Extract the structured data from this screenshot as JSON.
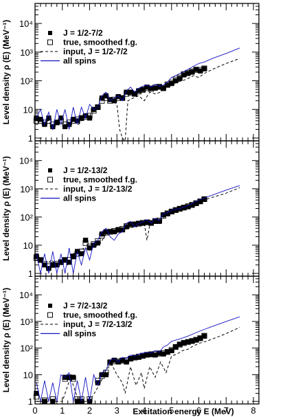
{
  "chart_data": [
    {
      "type": "line",
      "ylabel": "Level density ρ (E) (MeV⁻¹)",
      "xlabel": "",
      "xlim": [
        0,
        8.2
      ],
      "ylim": [
        0.8,
        50000
      ],
      "yscale": "log",
      "yticks": [
        "1",
        "10",
        "10²",
        "10³",
        "10⁴"
      ],
      "xticks": [],
      "legend": {
        "position": "top-left",
        "entries": [
          "J = 1/2-7/2",
          "true, smoothed f.g.",
          "input, J = 1/2-7/2",
          "all spins"
        ]
      },
      "series": [
        {
          "name": "J = 1/2-7/2",
          "style": "filled-square",
          "x": [
            0.05,
            0.2,
            0.35,
            0.5,
            0.65,
            0.8,
            0.95,
            1.1,
            1.25,
            1.4,
            1.55,
            1.7,
            1.85,
            2.0,
            2.15,
            2.3,
            2.45,
            2.6,
            2.75,
            2.9,
            3.05,
            3.2,
            3.35,
            3.5,
            3.65,
            3.8,
            3.95,
            4.1,
            4.25,
            4.4,
            4.55,
            4.7,
            4.85,
            5.0,
            5.15,
            5.3,
            5.45,
            5.6,
            5.75,
            5.9,
            6.05,
            6.2
          ],
          "y": [
            5,
            4.5,
            3,
            5,
            2.5,
            3.5,
            5,
            2.5,
            3,
            4.5,
            4,
            5,
            6,
            5,
            10,
            12,
            25,
            30,
            22,
            20,
            28,
            25,
            40,
            40,
            35,
            45,
            50,
            60,
            55,
            55,
            60,
            55,
            70,
            80,
            100,
            120,
            160,
            180,
            200,
            250,
            220,
            260
          ]
        },
        {
          "name": "true, smoothed f.g.",
          "style": "open-square",
          "x": [
            0.05,
            0.2,
            0.35,
            0.5,
            0.65,
            0.8,
            0.95,
            1.1,
            1.25,
            1.4,
            1.55,
            1.7,
            1.85,
            2.0,
            2.15,
            2.3,
            2.45,
            2.6,
            2.75,
            2.9,
            3.05,
            3.2,
            3.35,
            3.5,
            3.65,
            3.8,
            3.95,
            4.1,
            4.25,
            4.4,
            4.55,
            4.7,
            4.85,
            5.0,
            5.15,
            5.3,
            5.45,
            5.6,
            5.75,
            5.9,
            6.05,
            6.2
          ],
          "y": [
            4,
            4,
            3.5,
            4,
            3,
            3.5,
            4,
            3,
            3.5,
            4,
            4.5,
            5,
            5.5,
            6,
            9,
            12,
            20,
            25,
            20,
            22,
            25,
            25,
            35,
            38,
            35,
            42,
            48,
            55,
            52,
            58,
            62,
            55,
            75,
            85,
            110,
            130,
            170,
            190,
            210,
            240,
            240,
            270
          ]
        },
        {
          "name": "input, J = 1/2-7/2",
          "style": "dashed",
          "x": [
            0.05,
            0.5,
            0.65,
            0.8,
            1.0,
            1.2,
            1.4,
            1.6,
            1.8,
            2.0,
            2.2,
            2.4,
            2.6,
            2.8,
            3.0,
            3.1,
            3.2,
            3.3,
            3.4,
            3.6,
            3.8,
            4.0,
            4.2,
            4.4,
            4.6,
            4.8,
            5.0,
            5.2,
            5.4,
            5.6,
            5.8,
            6.0,
            6.2,
            6.5,
            7.0,
            7.5
          ],
          "y": [
            4,
            4,
            2,
            4,
            3,
            2.5,
            4,
            3,
            5,
            6,
            10,
            18,
            25,
            22,
            15,
            2,
            1,
            0.8,
            20,
            25,
            30,
            20,
            40,
            35,
            40,
            60,
            70,
            90,
            100,
            120,
            150,
            130,
            180,
            250,
            400,
            600
          ]
        },
        {
          "name": "all spins",
          "style": "blue-line",
          "x": [
            0.05,
            0.2,
            0.35,
            0.5,
            0.65,
            0.8,
            0.95,
            1.1,
            1.25,
            1.4,
            1.55,
            1.7,
            1.85,
            2.0,
            2.15,
            2.3,
            2.45,
            2.6,
            2.75,
            2.9,
            3.05,
            3.2,
            3.35,
            3.5,
            3.65,
            3.8,
            3.95,
            4.1,
            4.25,
            4.4,
            4.55,
            4.7,
            4.85,
            5.0,
            5.2,
            5.4,
            5.6,
            5.8,
            6.0,
            6.2,
            6.5,
            7.0,
            7.5
          ],
          "y": [
            5,
            10,
            3,
            8,
            2,
            10,
            3,
            10,
            2,
            12,
            3,
            12,
            5,
            15,
            10,
            12,
            30,
            40,
            20,
            25,
            30,
            20,
            45,
            60,
            40,
            55,
            65,
            70,
            60,
            75,
            65,
            70,
            90,
            130,
            160,
            200,
            250,
            320,
            400,
            450,
            600,
            900,
            1400
          ]
        }
      ]
    },
    {
      "type": "line",
      "ylabel": "Level density ρ (E) (MeV⁻¹)",
      "xlabel": "",
      "xlim": [
        0,
        8.2
      ],
      "ylim": [
        0.8,
        50000
      ],
      "yscale": "log",
      "yticks": [
        "1",
        "10",
        "10²",
        "10³",
        "10⁴"
      ],
      "xticks": [],
      "legend": {
        "position": "top-left",
        "entries": [
          "J = 1/2-13/2",
          "true, smoothed f.g.",
          "input, J = 1/2-13/2",
          "all spins"
        ]
      },
      "series": [
        {
          "name": "J = 1/2-13/2",
          "style": "filled-square",
          "x": [
            0.05,
            0.2,
            0.35,
            0.5,
            0.65,
            0.8,
            0.95,
            1.1,
            1.25,
            1.4,
            1.55,
            1.7,
            1.85,
            2.0,
            2.15,
            2.3,
            2.45,
            2.6,
            2.75,
            2.9,
            3.05,
            3.2,
            3.35,
            3.5,
            3.65,
            3.8,
            3.95,
            4.1,
            4.25,
            4.4,
            4.55,
            4.7,
            4.85,
            5.0,
            5.15,
            5.3,
            5.45,
            5.6,
            5.75,
            5.9,
            6.05,
            6.2
          ],
          "y": [
            4,
            3,
            2,
            1.5,
            2,
            2,
            2.5,
            3,
            2.5,
            4,
            6,
            5,
            15,
            8,
            10,
            12,
            25,
            30,
            30,
            30,
            35,
            35,
            45,
            55,
            55,
            60,
            60,
            65,
            60,
            70,
            70,
            120,
            130,
            160,
            180,
            200,
            220,
            230,
            260,
            300,
            350,
            420
          ]
        },
        {
          "name": "true, smoothed f.g.",
          "style": "open-square",
          "x": [
            0.05,
            0.2,
            0.35,
            0.5,
            0.65,
            0.8,
            0.95,
            1.1,
            1.25,
            1.4,
            1.55,
            1.7,
            1.85,
            2.0,
            2.15,
            2.3,
            2.45,
            2.6,
            2.75,
            2.9,
            3.05,
            3.2,
            3.35,
            3.5,
            3.65,
            3.8,
            3.95,
            4.1,
            4.25,
            4.4,
            4.55,
            4.7,
            4.85,
            5.0,
            5.15,
            5.3,
            5.45,
            5.6,
            5.75,
            5.9,
            6.05,
            6.2
          ],
          "y": [
            3.5,
            3,
            2.2,
            1.8,
            2,
            2.2,
            2.5,
            3,
            3,
            4,
            5,
            6,
            12,
            9,
            11,
            14,
            22,
            28,
            30,
            32,
            35,
            38,
            48,
            52,
            55,
            58,
            62,
            65,
            62,
            72,
            75,
            110,
            135,
            155,
            175,
            195,
            215,
            240,
            270,
            310,
            360,
            430
          ]
        },
        {
          "name": "input, J = 1/2-13/2",
          "style": "dashed",
          "x": [
            0.05,
            0.4,
            0.6,
            0.8,
            1.0,
            1.2,
            1.4,
            1.6,
            1.8,
            2.0,
            2.2,
            2.4,
            2.6,
            2.8,
            3.0,
            3.2,
            3.4,
            3.6,
            3.8,
            4.0,
            4.1,
            4.2,
            4.4,
            4.6,
            4.8,
            5.0,
            5.3,
            5.6,
            6.0,
            6.5,
            7.0,
            7.5
          ],
          "y": [
            3,
            2,
            3,
            2,
            3,
            2,
            5,
            6,
            8,
            7,
            9,
            12,
            25,
            30,
            30,
            35,
            45,
            50,
            55,
            60,
            15,
            50,
            60,
            70,
            120,
            150,
            190,
            230,
            350,
            500,
            700,
            1100
          ]
        },
        {
          "name": "all spins",
          "style": "blue-line",
          "x": [
            0.05,
            0.2,
            0.35,
            0.5,
            0.65,
            0.8,
            0.95,
            1.1,
            1.25,
            1.4,
            1.55,
            1.7,
            1.85,
            2.0,
            2.15,
            2.3,
            2.45,
            2.6,
            2.75,
            2.9,
            3.05,
            3.2,
            3.35,
            3.5,
            3.65,
            3.8,
            3.95,
            4.1,
            4.25,
            4.4,
            4.55,
            4.7,
            4.85,
            5.0,
            5.3,
            5.6,
            6.0,
            6.5,
            7.0,
            7.5
          ],
          "y": [
            5,
            1,
            5,
            1,
            6,
            1,
            5,
            1,
            8,
            1,
            6,
            2,
            8,
            3,
            12,
            15,
            30,
            40,
            20,
            15,
            25,
            30,
            60,
            70,
            45,
            60,
            65,
            80,
            60,
            90,
            75,
            130,
            140,
            180,
            200,
            250,
            400,
            600,
            900,
            1300
          ]
        }
      ]
    },
    {
      "type": "line",
      "ylabel": "Level density ρ (E) (MeV⁻¹)",
      "xlabel": "Excitation energy E (MeV)",
      "xlim": [
        0,
        8.2
      ],
      "ylim": [
        0.8,
        50000
      ],
      "yscale": "log",
      "yticks": [
        "1",
        "10",
        "10²",
        "10³",
        "10⁴"
      ],
      "xticks": [
        "0",
        "1",
        "2",
        "3",
        "4",
        "5",
        "6",
        "7",
        "8"
      ],
      "legend": {
        "position": "top-left",
        "entries": [
          "J = 7/2-13/2",
          "true, smoothed f.g.",
          "input, J = 7/2-13/2",
          "all spins"
        ]
      },
      "series": [
        {
          "name": "J = 7/2-13/2",
          "style": "filled-square",
          "x": [
            0.05,
            0.35,
            0.65,
            1.1,
            1.25,
            1.4,
            1.55,
            1.7,
            2.0,
            2.3,
            2.45,
            2.6,
            2.75,
            2.9,
            3.05,
            3.2,
            3.35,
            3.5,
            3.65,
            3.8,
            3.95,
            4.1,
            4.25,
            4.4,
            4.55,
            4.7,
            4.85,
            5.0,
            5.15,
            5.3,
            5.45,
            5.6,
            5.75,
            5.9,
            6.05,
            6.2
          ],
          "y": [
            2,
            1,
            1,
            8,
            8,
            8,
            1,
            1,
            1,
            5,
            10,
            10,
            30,
            35,
            30,
            35,
            30,
            40,
            45,
            45,
            50,
            55,
            60,
            55,
            65,
            60,
            70,
            80,
            110,
            140,
            160,
            170,
            180,
            200,
            230,
            280
          ]
        },
        {
          "name": "true, smoothed f.g.",
          "style": "open-square",
          "x": [
            0.05,
            0.35,
            0.65,
            1.1,
            1.25,
            1.4,
            1.55,
            1.7,
            2.0,
            2.3,
            2.45,
            2.6,
            2.75,
            2.9,
            3.05,
            3.2,
            3.35,
            3.5,
            3.65,
            3.8,
            3.95,
            4.1,
            4.25,
            4.4,
            4.55,
            4.7,
            4.85,
            5.0,
            5.15,
            5.3,
            5.45,
            5.6,
            5.75,
            5.9,
            6.05,
            6.2
          ],
          "y": [
            1.5,
            1.1,
            1.2,
            7,
            8,
            7,
            1.2,
            1.2,
            1.2,
            6,
            9,
            12,
            28,
            32,
            32,
            33,
            35,
            40,
            44,
            48,
            52,
            56,
            58,
            60,
            62,
            65,
            72,
            85,
            110,
            135,
            155,
            170,
            185,
            205,
            235,
            290
          ]
        },
        {
          "name": "input, J = 7/2-13/2",
          "style": "dashed",
          "x": [
            0.05,
            1.0,
            1.3,
            1.6,
            2.0,
            2.4,
            2.6,
            2.8,
            3.0,
            3.2,
            3.3,
            3.5,
            3.7,
            3.9,
            4.0,
            4.2,
            4.4,
            4.6,
            4.8,
            5.0,
            5.2,
            5.4,
            5.6,
            5.8,
            6.0,
            6.2,
            6.5,
            7.0,
            7.5
          ],
          "y": [
            1,
            1,
            8,
            1,
            1,
            5,
            15,
            25,
            10,
            5,
            2,
            20,
            4,
            12,
            3,
            20,
            8,
            30,
            12,
            50,
            60,
            80,
            90,
            120,
            150,
            170,
            220,
            350,
            600
          ]
        },
        {
          "name": "all spins",
          "style": "blue-line",
          "x": [
            0.05,
            0.2,
            0.35,
            0.5,
            0.65,
            0.8,
            0.95,
            1.1,
            1.25,
            1.4,
            1.55,
            1.7,
            1.85,
            2.0,
            2.15,
            2.3,
            2.45,
            2.6,
            2.75,
            2.9,
            3.05,
            3.2,
            3.35,
            3.5,
            3.65,
            3.8,
            3.95,
            4.1,
            4.25,
            4.4,
            4.55,
            4.7,
            4.85,
            5.0,
            5.3,
            5.6,
            6.0,
            6.5,
            7.0,
            7.5
          ],
          "y": [
            5,
            1,
            6,
            1,
            5,
            1,
            10,
            8,
            12,
            1,
            6,
            1,
            8,
            1,
            10,
            4,
            12,
            15,
            35,
            40,
            30,
            45,
            40,
            55,
            50,
            60,
            65,
            70,
            65,
            80,
            70,
            110,
            130,
            180,
            220,
            280,
            420,
            650,
            1000,
            1500
          ]
        }
      ]
    }
  ]
}
